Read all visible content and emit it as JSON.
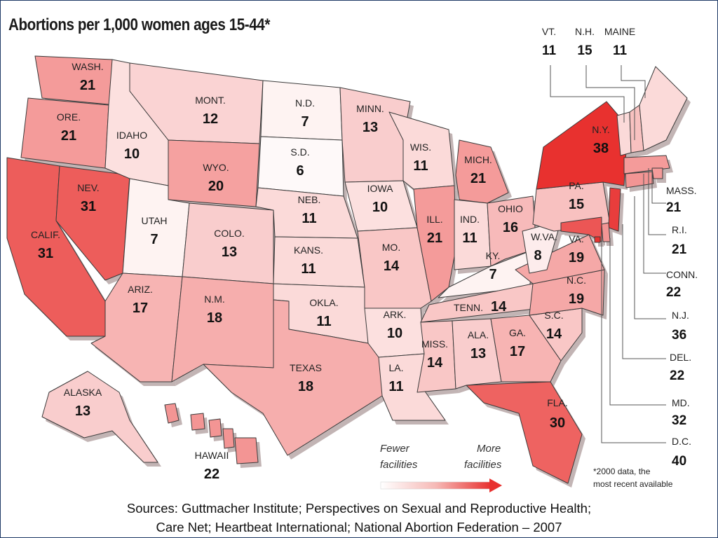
{
  "title": "Abortions per 1,000 women ages 15-44*",
  "colors": {
    "frame": "#1f3a66",
    "scale_low": "#ffffff",
    "scale_high": "#e8312f",
    "border": "#333333"
  },
  "states": {
    "wa": {
      "name": "WASH.",
      "value": "21"
    },
    "or": {
      "name": "ORE.",
      "value": "21"
    },
    "ca": {
      "name": "CALIF.",
      "value": "31"
    },
    "nv": {
      "name": "NEV.",
      "value": "31"
    },
    "id": {
      "name": "IDAHO",
      "value": "10"
    },
    "mt": {
      "name": "MONT.",
      "value": "12"
    },
    "wy": {
      "name": "WYO.",
      "value": "20"
    },
    "ut": {
      "name": "UTAH",
      "value": "7"
    },
    "az": {
      "name": "ARIZ.",
      "value": "17"
    },
    "co": {
      "name": "COLO.",
      "value": "13"
    },
    "nm": {
      "name": "N.M.",
      "value": "18"
    },
    "nd": {
      "name": "N.D.",
      "value": "7"
    },
    "sd": {
      "name": "S.D.",
      "value": "6"
    },
    "ne": {
      "name": "NEB.",
      "value": "11"
    },
    "ks": {
      "name": "KANS.",
      "value": "11"
    },
    "ok": {
      "name": "OKLA.",
      "value": "11"
    },
    "tx": {
      "name": "TEXAS",
      "value": "18"
    },
    "mn": {
      "name": "MINN.",
      "value": "13"
    },
    "ia": {
      "name": "IOWA",
      "value": "10"
    },
    "mo": {
      "name": "MO.",
      "value": "14"
    },
    "ar": {
      "name": "ARK.",
      "value": "10"
    },
    "la": {
      "name": "LA.",
      "value": "11"
    },
    "wi": {
      "name": "WIS.",
      "value": "11"
    },
    "il": {
      "name": "ILL.",
      "value": "21"
    },
    "mi": {
      "name": "MICH.",
      "value": "21"
    },
    "in": {
      "name": "IND.",
      "value": "11"
    },
    "oh": {
      "name": "OHIO",
      "value": "16"
    },
    "ky": {
      "name": "KY.",
      "value": "7"
    },
    "tn": {
      "name": "TENN.",
      "value": "14"
    },
    "ms": {
      "name": "MISS.",
      "value": "14"
    },
    "al": {
      "name": "ALA.",
      "value": "13"
    },
    "ga": {
      "name": "GA.",
      "value": "17"
    },
    "fl": {
      "name": "FLA.",
      "value": "30"
    },
    "sc": {
      "name": "S.C.",
      "value": "14"
    },
    "nc": {
      "name": "N.C.",
      "value": "19"
    },
    "va": {
      "name": "VA.",
      "value": "19"
    },
    "wv": {
      "name": "W.VA.",
      "value": "8"
    },
    "pa": {
      "name": "PA.",
      "value": "15"
    },
    "ny": {
      "name": "N.Y.",
      "value": "38"
    },
    "ak": {
      "name": "ALASKA",
      "value": "13"
    },
    "hi": {
      "name": "HAWAII",
      "value": "22"
    }
  },
  "northeast": {
    "vt": {
      "name": "VT.",
      "value": "11"
    },
    "nh": {
      "name": "N.H.",
      "value": "15"
    },
    "me": {
      "name": "MAINE",
      "value": "11"
    },
    "ma": {
      "name": "MASS.",
      "value": "21"
    },
    "ri": {
      "name": "R.I.",
      "value": "21"
    },
    "ct": {
      "name": "CONN.",
      "value": "22"
    },
    "nj": {
      "name": "N.J.",
      "value": "36"
    },
    "de": {
      "name": "DEL.",
      "value": "22"
    },
    "md": {
      "name": "MD.",
      "value": "32"
    },
    "dc": {
      "name": "D.C.",
      "value": "40"
    }
  },
  "legend": {
    "fewer_line1": "Fewer",
    "fewer_line2": "facilities",
    "more_line1": "More",
    "more_line2": "facilities"
  },
  "footnote": {
    "line1": "*2000 data, the",
    "line2": "most recent available"
  },
  "sources": {
    "line1": "Sources: Guttmacher Institute; Perspectives on Sexual and Reproductive Health;",
    "line2": "Care Net; Heartbeat International; National Abortion Federation – 2007"
  }
}
